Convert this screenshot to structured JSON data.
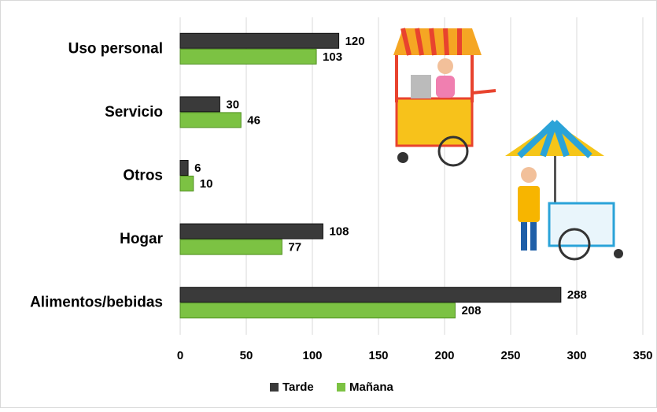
{
  "chart_data": {
    "type": "hbar",
    "categories": [
      "Uso personal",
      "Servicio",
      "Otros",
      "Hogar",
      "Alimentos/bebidas"
    ],
    "series": [
      {
        "name": "Tarde",
        "color": "#3a3a3a",
        "values": [
          120,
          30,
          6,
          108,
          288
        ]
      },
      {
        "name": "Mañana",
        "color": "#7cc243",
        "values": [
          103,
          46,
          10,
          77,
          208
        ]
      }
    ],
    "xlim": [
      0,
      350
    ],
    "xticks": [
      0,
      50,
      100,
      150,
      200,
      250,
      300,
      350
    ],
    "grid": true,
    "legend": "bottom"
  }
}
